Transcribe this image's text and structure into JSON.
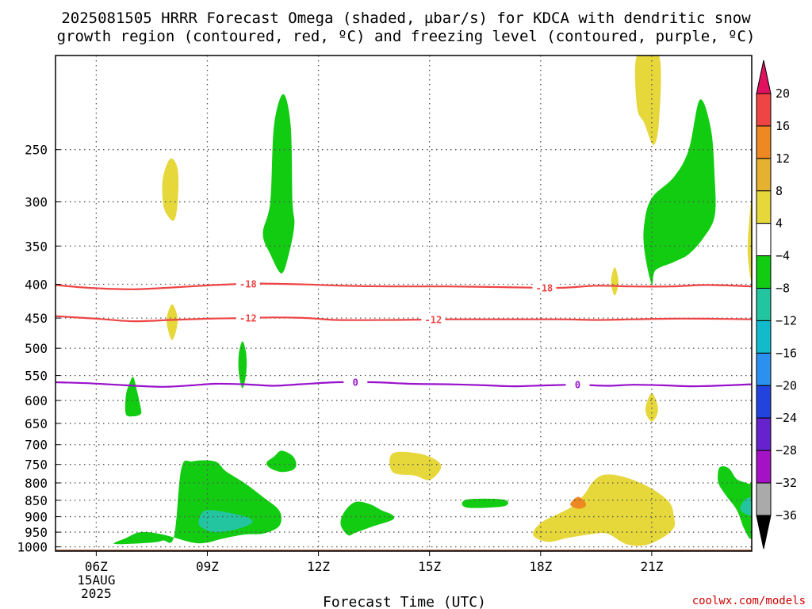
{
  "title_line1": "2025081505 HRRR Forecast Omega (shaded, µbar/s) for KDCA with dendritic snow",
  "title_line2": "growth region (contoured, red, ºC) and freezing level (contoured, purple, ºC)",
  "credit": "coolwx.com/models",
  "chart_data": {
    "type": "area",
    "xlabel": "Forecast Time (UTC)",
    "ylabel": "",
    "x_range_hours": [
      4.9,
      23.7
    ],
    "y_range_hpa": [
      1015,
      180
    ],
    "y_scale": "log-pressure",
    "grid": true,
    "x_ticks": [
      {
        "hour": 6,
        "label": "06Z",
        "sub1": "15AUG",
        "sub2": "2025"
      },
      {
        "hour": 9,
        "label": "09Z",
        "sub1": "",
        "sub2": ""
      },
      {
        "hour": 12,
        "label": "12Z",
        "sub1": "",
        "sub2": ""
      },
      {
        "hour": 15,
        "label": "15Z",
        "sub1": "",
        "sub2": ""
      },
      {
        "hour": 18,
        "label": "18Z",
        "sub1": "",
        "sub2": ""
      },
      {
        "hour": 21,
        "label": "21Z",
        "sub1": "",
        "sub2": ""
      }
    ],
    "y_ticks": [
      250,
      300,
      350,
      400,
      450,
      500,
      550,
      600,
      650,
      700,
      750,
      800,
      850,
      900,
      950,
      1000
    ],
    "colorbar": {
      "levels": [
        "20",
        "16",
        "12",
        "8",
        "4",
        "−4",
        "−8",
        "−12",
        "−16",
        "−20",
        "−24",
        "−28",
        "−32",
        "−36"
      ],
      "colors": [
        "#e0115f",
        "#ee4444",
        "#ee8822",
        "#e6b030",
        "#e6d73a",
        "#ffffff",
        "#11cc11",
        "#22c5a0",
        "#11bbcc",
        "#2b90ee",
        "#2244dd",
        "#6622cc",
        "#a511c5",
        "#aaaaaa",
        "#000000"
      ]
    },
    "contours": [
      {
        "name": "dendritic-minus18",
        "label": "-18",
        "color": "#ee4444",
        "points": [
          [
            4.9,
            401
          ],
          [
            5.8,
            405
          ],
          [
            7,
            407
          ],
          [
            8.2,
            404
          ],
          [
            9.2,
            401
          ],
          [
            10.3,
            399
          ],
          [
            11.5,
            400
          ],
          [
            12.7,
            402
          ],
          [
            14,
            403
          ],
          [
            15.5,
            403
          ],
          [
            17,
            404
          ],
          [
            18.5,
            405
          ],
          [
            19.5,
            402
          ],
          [
            20.5,
            403
          ],
          [
            21.5,
            403
          ],
          [
            22.5,
            401
          ],
          [
            23.7,
            403
          ]
        ],
        "label_hours": [
          10.1,
          18.1
        ]
      },
      {
        "name": "dendritic-minus12",
        "label": "-12",
        "color": "#ee4444",
        "points": [
          [
            4.9,
            447
          ],
          [
            6,
            451
          ],
          [
            7,
            455
          ],
          [
            8,
            453
          ],
          [
            9,
            451
          ],
          [
            10,
            450
          ],
          [
            10.8,
            449
          ],
          [
            11.7,
            450
          ],
          [
            12.5,
            453
          ],
          [
            14,
            453
          ],
          [
            15.5,
            452
          ],
          [
            17,
            452
          ],
          [
            18.5,
            452
          ],
          [
            19.5,
            453
          ],
          [
            20.5,
            452
          ],
          [
            21.5,
            451
          ],
          [
            22.5,
            451
          ],
          [
            23.7,
            452
          ]
        ],
        "label_hours": [
          10.1,
          15.1
        ]
      },
      {
        "name": "freezing-level-0",
        "label": "0",
        "color": "#9911cc",
        "points": [
          [
            4.9,
            563
          ],
          [
            5.8,
            565
          ],
          [
            6.8,
            569
          ],
          [
            7.8,
            572
          ],
          [
            8.6,
            569
          ],
          [
            9.2,
            566
          ],
          [
            10,
            567
          ],
          [
            10.8,
            570
          ],
          [
            11.5,
            567
          ],
          [
            12.5,
            563
          ],
          [
            13.5,
            563
          ],
          [
            14.5,
            566
          ],
          [
            15.5,
            567
          ],
          [
            16.5,
            569
          ],
          [
            17.3,
            571
          ],
          [
            18.2,
            569
          ],
          [
            19,
            568
          ],
          [
            19.8,
            570
          ],
          [
            20.5,
            568
          ],
          [
            21.3,
            569
          ],
          [
            22,
            571
          ],
          [
            22.7,
            570
          ],
          [
            23.7,
            567
          ]
        ],
        "label_hours": [
          13.0,
          19.0
        ]
      }
    ],
    "shaded": [
      {
        "color": "#e6d73a",
        "points": [
          [
            8.0,
            258
          ],
          [
            8.2,
            268
          ],
          [
            8.2,
            300
          ],
          [
            8.1,
            320
          ],
          [
            7.9,
            313
          ],
          [
            7.8,
            300
          ],
          [
            7.8,
            276
          ]
        ]
      },
      {
        "color": "#11cc11",
        "points": [
          [
            11.05,
            206
          ],
          [
            11.25,
            230
          ],
          [
            11.3,
            300
          ],
          [
            11.35,
            325
          ],
          [
            11.2,
            360
          ],
          [
            11.0,
            385
          ],
          [
            10.7,
            360
          ],
          [
            10.5,
            335
          ],
          [
            10.7,
            300
          ],
          [
            10.8,
            230
          ]
        ]
      },
      {
        "color": "#e6d73a",
        "points": [
          [
            20.6,
            180
          ],
          [
            21.2,
            180
          ],
          [
            21.2,
            225
          ],
          [
            21.05,
            246
          ],
          [
            20.8,
            228
          ],
          [
            20.6,
            215
          ]
        ]
      },
      {
        "color": "#11cc11",
        "points": [
          [
            22.3,
            210
          ],
          [
            22.6,
            233
          ],
          [
            22.7,
            276
          ],
          [
            22.7,
            315
          ],
          [
            22.4,
            340
          ],
          [
            22.0,
            360
          ],
          [
            21.6,
            370
          ],
          [
            21.1,
            381
          ],
          [
            21.0,
            400
          ],
          [
            20.8,
            355
          ],
          [
            20.8,
            323
          ],
          [
            21.0,
            296
          ],
          [
            21.6,
            275
          ],
          [
            22.0,
            250
          ]
        ]
      },
      {
        "color": "#e6d73a",
        "points": [
          [
            23.7,
            298
          ],
          [
            23.7,
            392
          ],
          [
            23.6,
            365
          ],
          [
            23.6,
            340
          ]
        ]
      },
      {
        "color": "#e6d73a",
        "points": [
          [
            20.0,
            377
          ],
          [
            20.1,
            396
          ],
          [
            20.0,
            416
          ],
          [
            19.9,
            396
          ]
        ]
      },
      {
        "color": "#e6d73a",
        "points": [
          [
            8.05,
            429
          ],
          [
            8.2,
            454
          ],
          [
            8.05,
            486
          ],
          [
            7.9,
            454
          ]
        ]
      },
      {
        "color": "#11cc11",
        "points": [
          [
            9.95,
            488
          ],
          [
            10.05,
            510
          ],
          [
            10.05,
            545
          ],
          [
            9.95,
            575
          ],
          [
            9.85,
            545
          ],
          [
            9.85,
            510
          ]
        ]
      },
      {
        "color": "#11cc11",
        "points": [
          [
            7.0,
            553
          ],
          [
            7.1,
            580
          ],
          [
            7.2,
            615
          ],
          [
            7.2,
            629
          ],
          [
            7.0,
            634
          ],
          [
            6.8,
            629
          ],
          [
            6.8,
            590
          ],
          [
            6.9,
            565
          ]
        ]
      },
      {
        "color": "#e6d73a",
        "points": [
          [
            21.0,
            585
          ],
          [
            21.15,
            608
          ],
          [
            21.15,
            629
          ],
          [
            21.0,
            646
          ],
          [
            20.85,
            629
          ],
          [
            20.85,
            608
          ]
        ]
      },
      {
        "color": "#11cc11",
        "points": [
          [
            7.5,
            985
          ],
          [
            7.8,
            978
          ],
          [
            8.1,
            965
          ],
          [
            8.3,
            760
          ],
          [
            8.6,
            742
          ],
          [
            9.2,
            742
          ],
          [
            9.5,
            768
          ],
          [
            10.0,
            800
          ],
          [
            10.5,
            840
          ],
          [
            10.9,
            875
          ],
          [
            11.0,
            905
          ],
          [
            10.9,
            935
          ],
          [
            10.5,
            955
          ],
          [
            10.0,
            958
          ],
          [
            9.4,
            972
          ],
          [
            9.0,
            985
          ],
          [
            8.6,
            985
          ],
          [
            7.8,
            958
          ],
          [
            7.2,
            950
          ],
          [
            6.8,
            970
          ],
          [
            6.5,
            990
          ]
        ]
      },
      {
        "color": "#22c5a0",
        "points": [
          [
            9.0,
            880
          ],
          [
            9.6,
            888
          ],
          [
            10.1,
            903
          ],
          [
            10.2,
            920
          ],
          [
            9.8,
            940
          ],
          [
            9.2,
            950
          ],
          [
            8.8,
            930
          ],
          [
            8.8,
            900
          ]
        ]
      },
      {
        "color": "#11cc11",
        "points": [
          [
            10.8,
            730
          ],
          [
            11.0,
            715
          ],
          [
            11.3,
            728
          ],
          [
            11.4,
            750
          ],
          [
            11.3,
            765
          ],
          [
            11.0,
            770
          ],
          [
            10.7,
            760
          ],
          [
            10.6,
            745
          ]
        ]
      },
      {
        "color": "#e6d73a",
        "points": [
          [
            14.0,
            722
          ],
          [
            14.7,
            722
          ],
          [
            15.2,
            740
          ],
          [
            15.3,
            762
          ],
          [
            15.0,
            792
          ],
          [
            14.6,
            780
          ],
          [
            14.0,
            770
          ]
        ]
      },
      {
        "color": "#11cc11",
        "points": [
          [
            16.0,
            848
          ],
          [
            17.0,
            848
          ],
          [
            17.0,
            868
          ],
          [
            16.0,
            872
          ]
        ]
      },
      {
        "color": "#11cc11",
        "points": [
          [
            13.0,
            855
          ],
          [
            13.4,
            862
          ],
          [
            13.7,
            880
          ],
          [
            14.0,
            895
          ],
          [
            14.0,
            910
          ],
          [
            13.5,
            930
          ],
          [
            13.0,
            952
          ],
          [
            12.8,
            960
          ],
          [
            12.6,
            925
          ],
          [
            12.7,
            885
          ]
        ]
      },
      {
        "color": "#e6d73a",
        "points": [
          [
            19.7,
            778
          ],
          [
            20.2,
            782
          ],
          [
            20.8,
            805
          ],
          [
            21.2,
            830
          ],
          [
            21.5,
            860
          ],
          [
            21.6,
            900
          ],
          [
            21.6,
            935
          ],
          [
            21.3,
            968
          ],
          [
            20.8,
            995
          ],
          [
            20.3,
            990
          ],
          [
            19.8,
            955
          ],
          [
            19.3,
            958
          ],
          [
            18.7,
            970
          ],
          [
            18.2,
            983
          ],
          [
            17.8,
            960
          ],
          [
            18.0,
            920
          ],
          [
            18.5,
            890
          ],
          [
            18.9,
            865
          ],
          [
            19.2,
            830
          ],
          [
            19.4,
            798
          ]
        ]
      },
      {
        "color": "#ee8822",
        "points": [
          [
            19.0,
            840
          ],
          [
            19.2,
            855
          ],
          [
            19.2,
            870
          ],
          [
            19.0,
            875
          ],
          [
            18.8,
            862
          ]
        ]
      },
      {
        "color": "#11cc11",
        "points": [
          [
            22.9,
            755
          ],
          [
            23.1,
            762
          ],
          [
            23.3,
            790
          ],
          [
            23.6,
            802
          ],
          [
            23.7,
            815
          ],
          [
            23.7,
            965
          ],
          [
            23.5,
            940
          ],
          [
            23.3,
            880
          ],
          [
            23.0,
            835
          ],
          [
            22.8,
            800
          ],
          [
            22.8,
            765
          ]
        ]
      },
      {
        "color": "#22c5a0",
        "points": [
          [
            23.5,
            850
          ],
          [
            23.7,
            845
          ],
          [
            23.7,
            895
          ],
          [
            23.4,
            880
          ]
        ]
      }
    ],
    "terrain": {
      "color": "#a0522d",
      "top_hpa": 1010
    }
  }
}
